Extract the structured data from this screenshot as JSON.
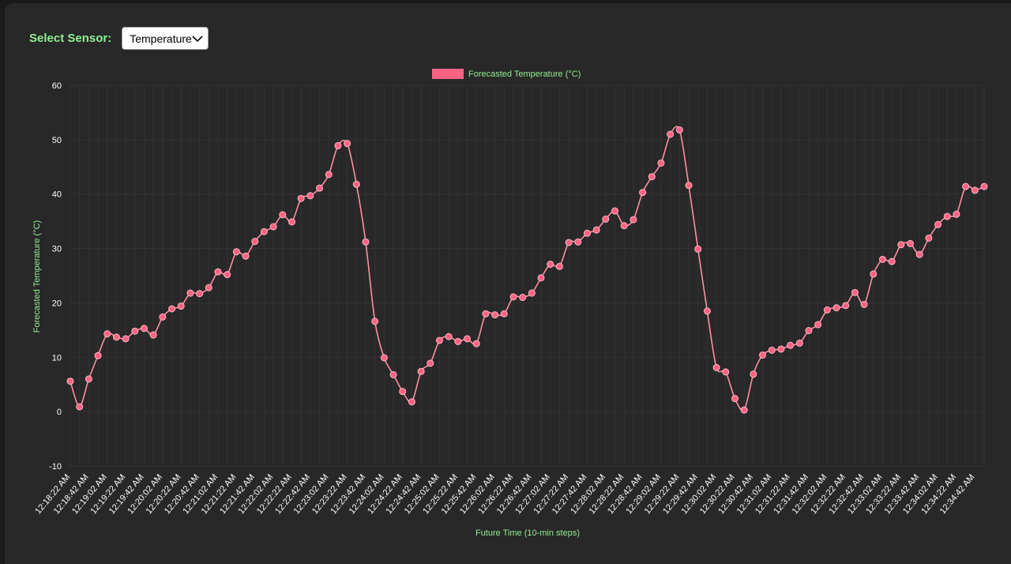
{
  "controls": {
    "sensor_label": "Select Sensor:",
    "selected_sensor": "Temperature"
  },
  "colors": {
    "series": "#ff6384",
    "series_line": "#ff8fa3",
    "axis_title": "#90ee90",
    "tick": "#ffffff",
    "grid": "#333333",
    "background": "#282828"
  },
  "icons": {
    "dropdown": "chevron-down-icon"
  },
  "chart_data": {
    "type": "line",
    "title": "",
    "xlabel": "Future Time (10-min steps)",
    "ylabel": "Forecasted Temperature (°C)",
    "ylim": [
      -10,
      60
    ],
    "yticks": [
      60,
      50,
      40,
      30,
      20,
      10,
      0,
      -10
    ],
    "grid": true,
    "legend_position": "top-center",
    "xtick_labels": [
      "12:18:22 AM",
      "12:18:42 AM",
      "12:19:02 AM",
      "12:19:22 AM",
      "12:19:42 AM",
      "12:20:02 AM",
      "12:20:22 AM",
      "12:20:42 AM",
      "12:21:02 AM",
      "12:21:22 AM",
      "12:21:42 AM",
      "12:22:02 AM",
      "12:22:22 AM",
      "12:22:42 AM",
      "12:23:02 AM",
      "12:23:22 AM",
      "12:23:42 AM",
      "12:24:02 AM",
      "12:24:22 AM",
      "12:24:42 AM",
      "12:25:02 AM",
      "12:25:22 AM",
      "12:25:42 AM",
      "12:26:02 AM",
      "12:26:22 AM",
      "12:26:42 AM",
      "12:27:02 AM",
      "12:27:22 AM",
      "12:27:42 AM",
      "12:28:02 AM",
      "12:28:22 AM",
      "12:28:42 AM",
      "12:29:02 AM",
      "12:29:22 AM",
      "12:29:42 AM",
      "12:30:02 AM",
      "12:30:22 AM",
      "12:30:42 AM",
      "12:31:02 AM",
      "12:31:22 AM",
      "12:31:42 AM",
      "12:32:02 AM",
      "12:32:22 AM",
      "12:32:42 AM",
      "12:33:02 AM",
      "12:33:22 AM",
      "12:33:42 AM",
      "12:34:02 AM",
      "12:34:22 AM",
      "12:34:42 AM"
    ],
    "series": [
      {
        "name": "Forecasted Temperature (°C)",
        "values": [
          5.6,
          0.9,
          6.0,
          10.3,
          14.3,
          13.7,
          13.4,
          14.8,
          15.3,
          14.1,
          17.4,
          18.9,
          19.4,
          21.8,
          21.7,
          22.8,
          25.7,
          25.2,
          29.4,
          28.6,
          31.3,
          33.1,
          34.0,
          36.2,
          34.9,
          39.2,
          39.7,
          41.1,
          43.6,
          48.9,
          49.3,
          41.8,
          31.2,
          16.6,
          9.9,
          6.8,
          3.7,
          1.8,
          7.4,
          8.9,
          13.1,
          13.8,
          12.9,
          13.4,
          12.5,
          18.0,
          17.8,
          18.0,
          21.1,
          21.0,
          21.8,
          24.6,
          27.1,
          26.7,
          31.1,
          31.2,
          32.8,
          33.4,
          35.4,
          36.9,
          34.2,
          35.3,
          40.3,
          43.2,
          45.7,
          51.0,
          51.8,
          41.6,
          29.9,
          18.5,
          8.1,
          7.3,
          2.4,
          0.3,
          6.9,
          10.4,
          11.3,
          11.5,
          12.2,
          12.6,
          14.9,
          16.0,
          18.7,
          19.1,
          19.5,
          21.9,
          19.7,
          25.3,
          28.0,
          27.6,
          30.7,
          30.9,
          28.9,
          31.9,
          34.4,
          35.9,
          36.3,
          41.4,
          40.7,
          41.4
        ]
      }
    ]
  }
}
